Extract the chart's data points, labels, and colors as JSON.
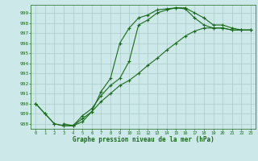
{
  "title": "Graphe pression niveau de la mer (hPa)",
  "xlim": [
    -0.5,
    23.5
  ],
  "ylim": [
    987.5,
    999.8
  ],
  "yticks": [
    988,
    989,
    990,
    991,
    992,
    993,
    994,
    995,
    996,
    997,
    998,
    999
  ],
  "xticks": [
    0,
    1,
    2,
    3,
    4,
    5,
    6,
    7,
    8,
    9,
    10,
    11,
    12,
    13,
    14,
    15,
    16,
    17,
    18,
    19,
    20,
    21,
    22,
    23
  ],
  "bg_color": "#cce8e8",
  "grid_color": "#aacccc",
  "line_color": "#1a6b1a",
  "line1_x": [
    0,
    1,
    2,
    3,
    4,
    5,
    6,
    7,
    8,
    9,
    10,
    11,
    12,
    13,
    14,
    15,
    16,
    17,
    18,
    19,
    20,
    21,
    22,
    23
  ],
  "line1_y": [
    990.0,
    989.0,
    988.0,
    987.8,
    987.8,
    988.2,
    989.2,
    991.2,
    992.5,
    996.0,
    997.5,
    998.5,
    998.8,
    999.3,
    999.4,
    999.5,
    999.4,
    998.5,
    997.8,
    997.5,
    997.5,
    997.3,
    997.3,
    997.3
  ],
  "line2_x": [
    3,
    4,
    5,
    6,
    7,
    8,
    9,
    10,
    11,
    12,
    13,
    14,
    15,
    16,
    17,
    18,
    19,
    20,
    21,
    22,
    23
  ],
  "line2_y": [
    988.0,
    987.8,
    988.8,
    989.5,
    990.8,
    991.8,
    992.5,
    994.2,
    997.8,
    998.3,
    999.0,
    999.3,
    999.5,
    999.5,
    999.0,
    998.5,
    997.8,
    997.8,
    997.5,
    997.3,
    997.3
  ],
  "line3_x": [
    0,
    1,
    2,
    3,
    4,
    5,
    6,
    7,
    8,
    9,
    10,
    11,
    12,
    13,
    14,
    15,
    16,
    17,
    18,
    19,
    20,
    21,
    22,
    23
  ],
  "line3_y": [
    990.0,
    989.0,
    988.0,
    987.8,
    987.8,
    988.5,
    989.2,
    990.2,
    991.0,
    991.8,
    992.3,
    993.0,
    993.8,
    994.5,
    995.3,
    996.0,
    996.7,
    997.2,
    997.5,
    997.5,
    997.5,
    997.3,
    997.3,
    997.3
  ],
  "figwidth": 3.2,
  "figheight": 2.0,
  "dpi": 100
}
